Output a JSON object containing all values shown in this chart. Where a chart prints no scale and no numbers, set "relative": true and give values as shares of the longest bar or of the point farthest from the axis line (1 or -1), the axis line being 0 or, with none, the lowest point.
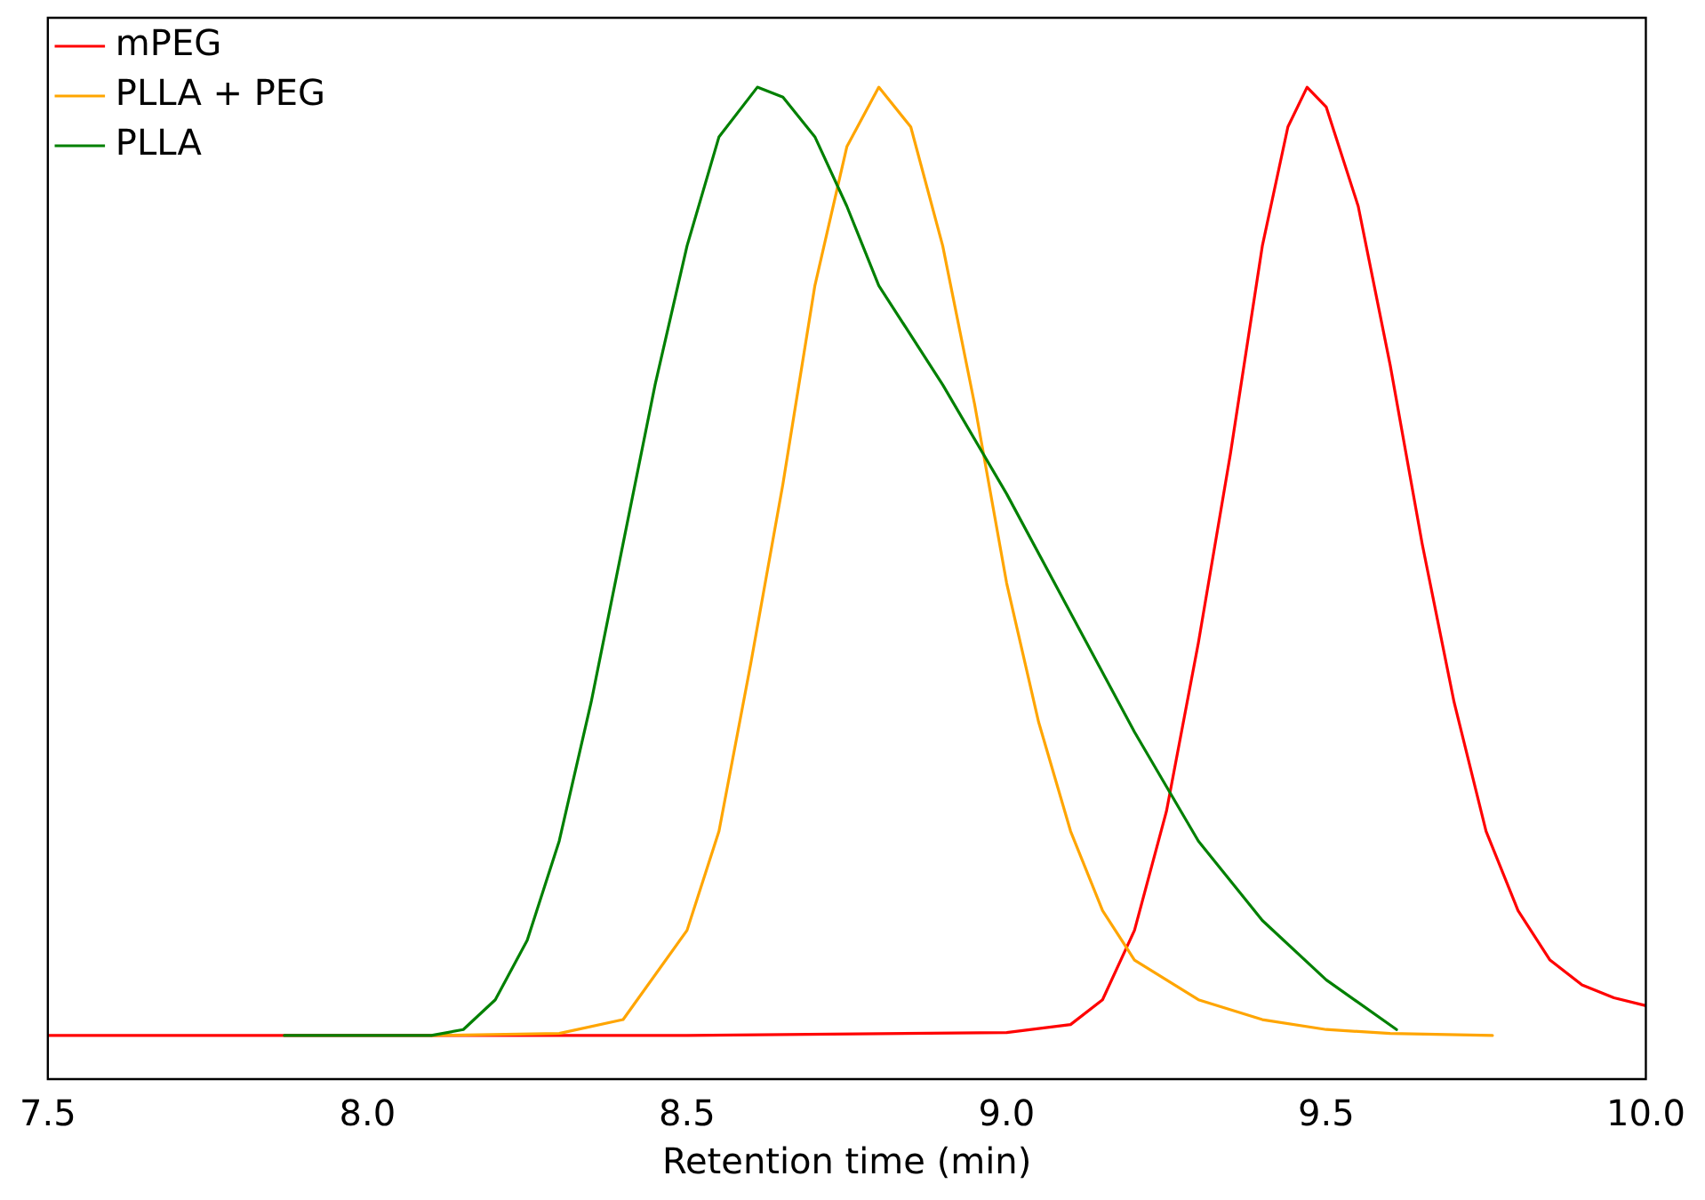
{
  "chart_data": {
    "type": "line",
    "relative": true,
    "xlabel": "Retention time (min)",
    "xlim": [
      7.5,
      10.0
    ],
    "xticks": [
      7.5,
      {
        "value": 8,
        "label": "8.0"
      },
      8.5,
      {
        "value": 9,
        "label": "9.0"
      },
      9.5,
      {
        "value": 10,
        "label": "10.0"
      }
    ],
    "grid": false,
    "legend": "top left",
    "marker": "none",
    "line_style": "solid",
    "series": [
      {
        "name": "mPEG",
        "color": "#ff0000",
        "x": [
          7.5,
          8.5,
          9.0,
          9.1,
          9.15,
          9.2,
          9.25,
          9.3,
          9.35,
          9.4,
          9.44,
          9.47,
          9.5,
          9.55,
          9.6,
          9.65,
          9.7,
          9.75,
          9.8,
          9.85,
          9.9,
          9.95,
          10.0
        ],
        "values": [
          0.044,
          0.044,
          0.047,
          0.055,
          0.08,
          0.15,
          0.27,
          0.44,
          0.63,
          0.84,
          0.96,
          1.0,
          0.98,
          0.88,
          0.72,
          0.54,
          0.38,
          0.25,
          0.17,
          0.12,
          0.095,
          0.082,
          0.074
        ]
      },
      {
        "name": "PLLA + PEG",
        "color": "#ffa500",
        "x": [
          8.1,
          8.3,
          8.4,
          8.5,
          8.55,
          8.6,
          8.65,
          8.7,
          8.75,
          8.8,
          8.85,
          8.9,
          8.95,
          9.0,
          9.05,
          9.1,
          9.15,
          9.2,
          9.3,
          9.4,
          9.5,
          9.6,
          9.76
        ],
        "values": [
          0.044,
          0.046,
          0.06,
          0.15,
          0.25,
          0.42,
          0.6,
          0.8,
          0.94,
          1.0,
          0.96,
          0.84,
          0.68,
          0.5,
          0.36,
          0.25,
          0.17,
          0.12,
          0.08,
          0.06,
          0.05,
          0.046,
          0.044
        ]
      },
      {
        "name": "PLLA",
        "color": "#008000",
        "x": [
          7.87,
          8.1,
          8.15,
          8.2,
          8.25,
          8.3,
          8.35,
          8.4,
          8.45,
          8.5,
          8.55,
          8.61,
          8.65,
          8.7,
          8.75,
          8.8,
          8.9,
          9.0,
          9.1,
          9.2,
          9.3,
          9.4,
          9.5,
          9.61
        ],
        "values": [
          0.044,
          0.044,
          0.05,
          0.08,
          0.14,
          0.24,
          0.38,
          0.54,
          0.7,
          0.84,
          0.95,
          1.0,
          0.99,
          0.95,
          0.88,
          0.8,
          0.7,
          0.59,
          0.47,
          0.35,
          0.24,
          0.16,
          0.1,
          0.05
        ]
      }
    ]
  }
}
